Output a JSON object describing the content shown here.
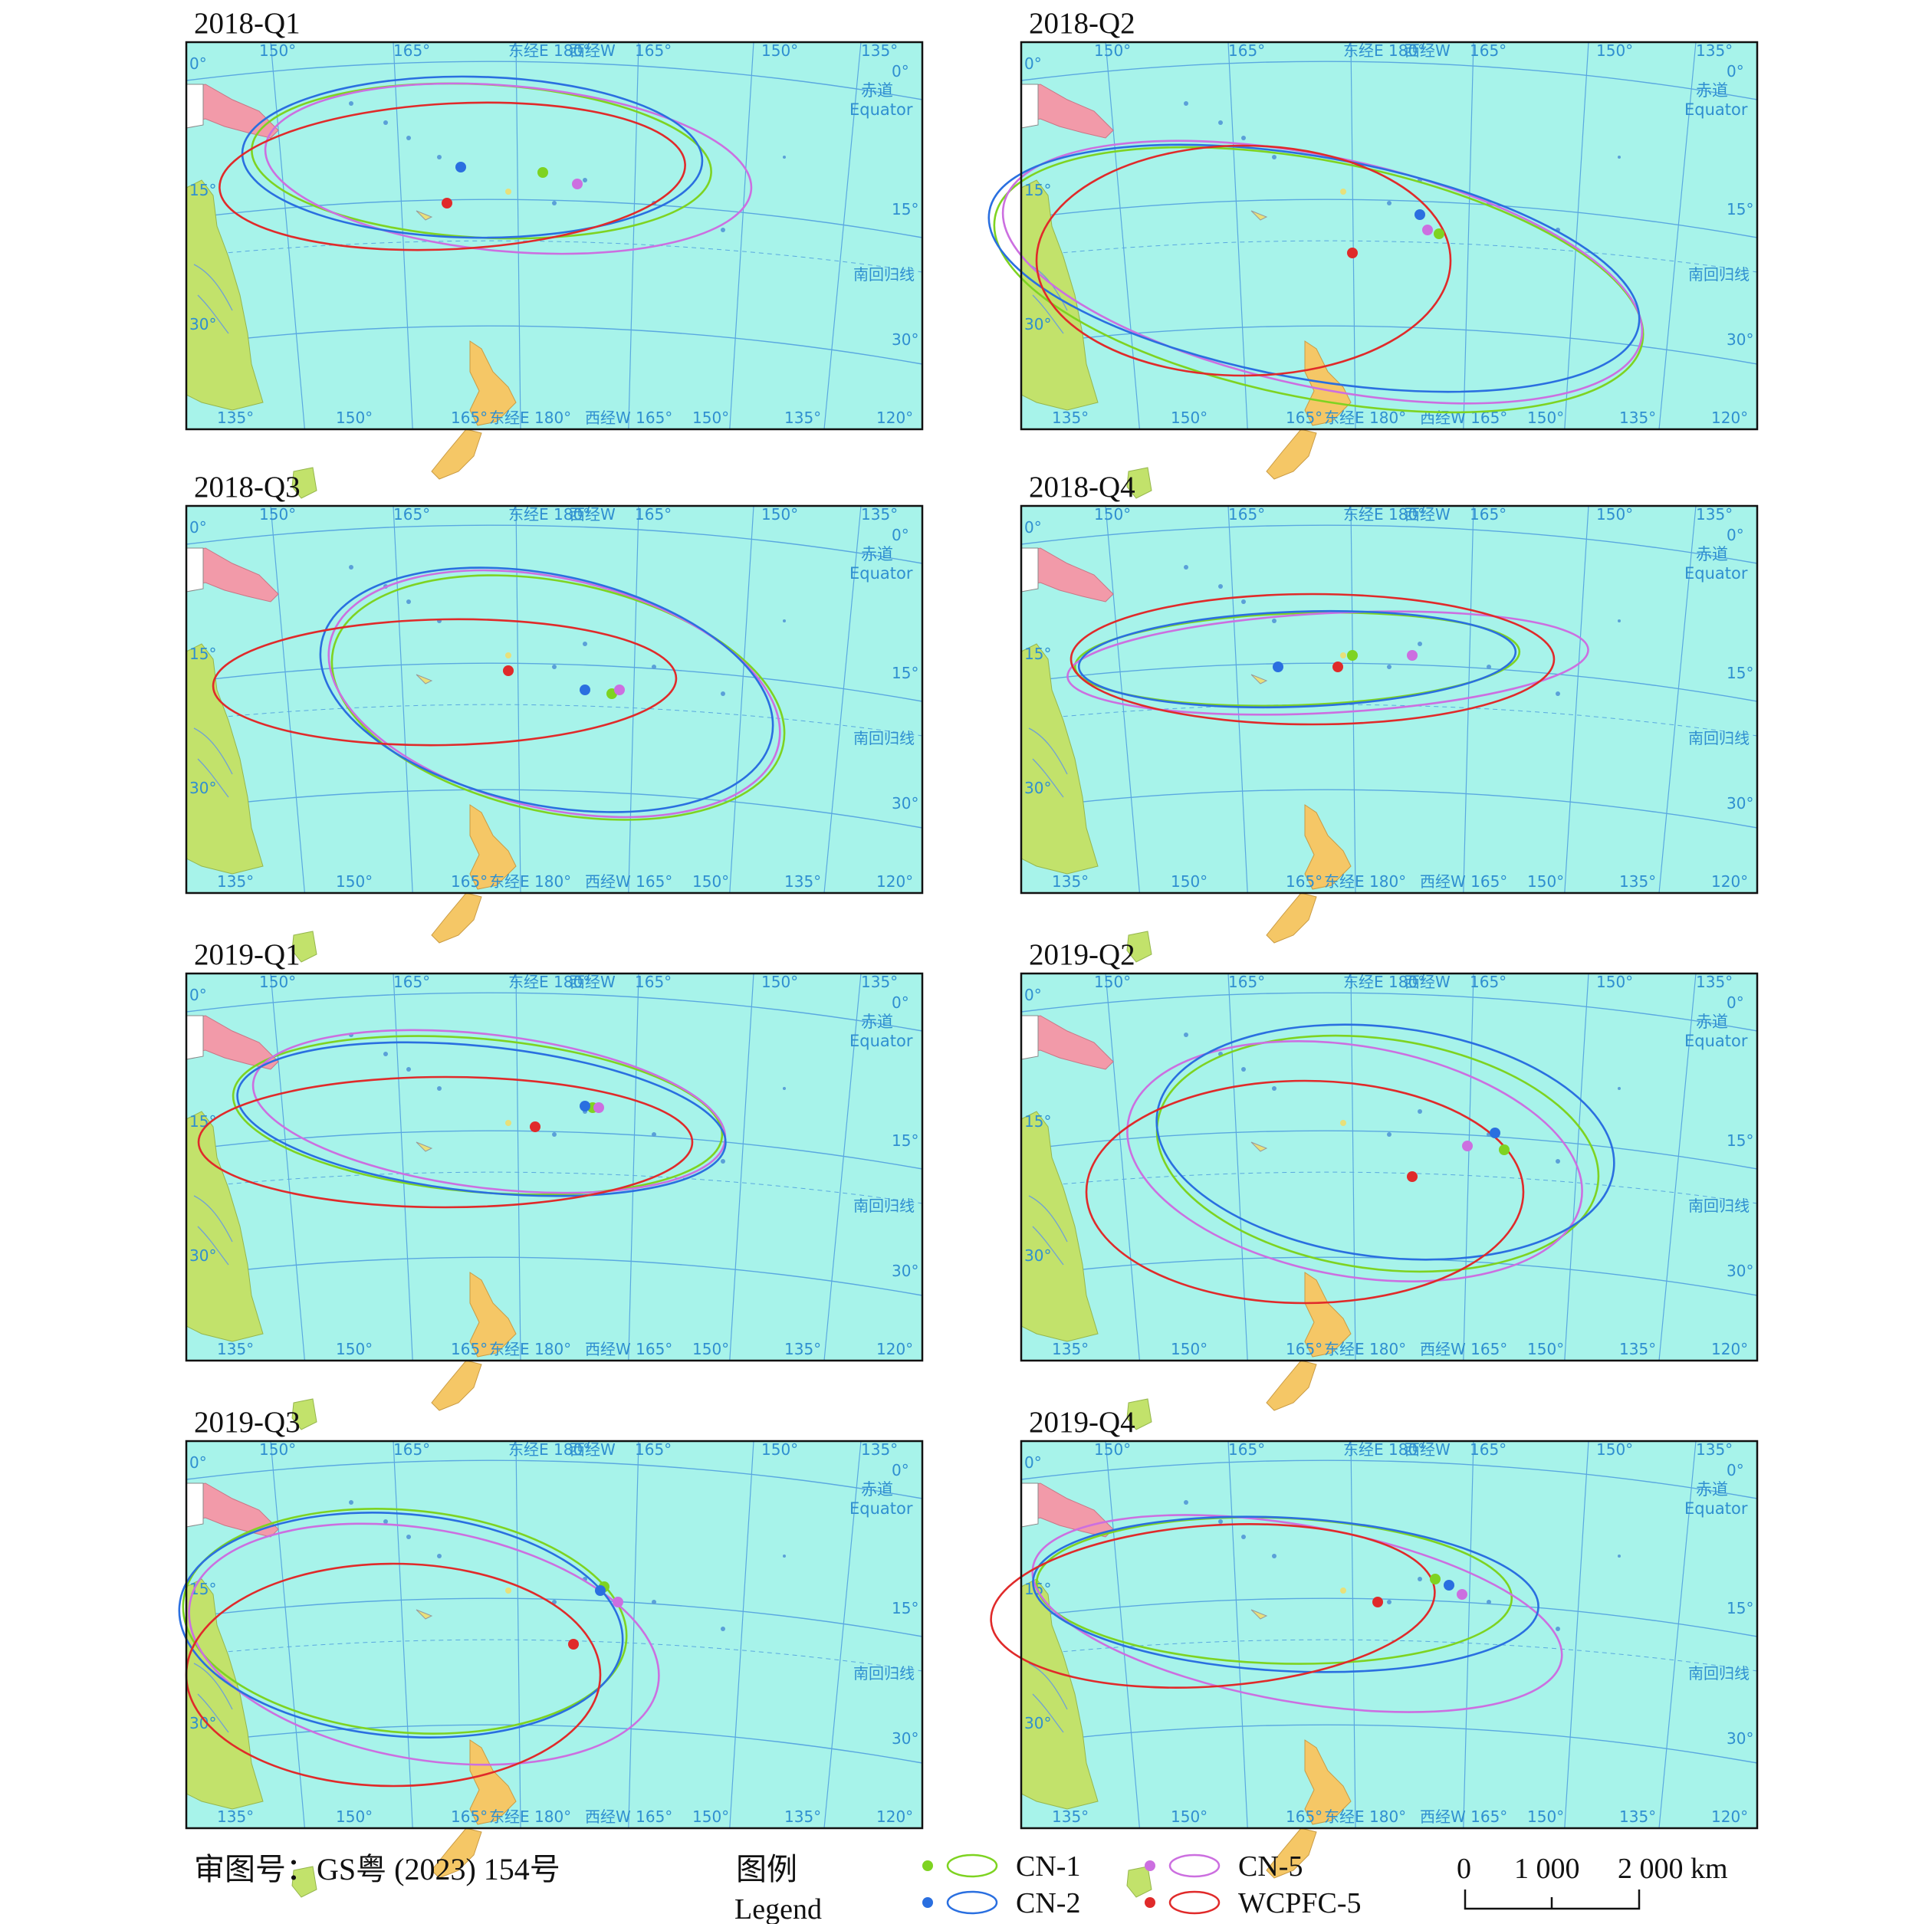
{
  "approval_number": "审图号：GS粤 (2023) 154号",
  "legend": {
    "title_cn": "图例",
    "title_en": "Legend",
    "items": [
      {
        "name": "CN-1",
        "color": "#7ed321"
      },
      {
        "name": "CN-2",
        "color": "#2a6fe0"
      },
      {
        "name": "CN-5",
        "color": "#cc6fe0"
      },
      {
        "name": "WCPFC-5",
        "color": "#e02a2a"
      }
    ]
  },
  "scale_bar": {
    "labels": [
      "0",
      "1 000",
      "2 000 km"
    ]
  },
  "map_labels": {
    "top_ticks": [
      "150°",
      "165°",
      "东经E 180°",
      "西经W",
      "165°",
      "150°",
      "135°"
    ],
    "bottom_ticks": [
      "135°",
      "150°",
      "165°",
      "东经E 180°",
      "西经W 165°",
      "150°",
      "135°",
      "120°"
    ],
    "left_lat": [
      "0°",
      "15°",
      "30°"
    ],
    "right_lat": [
      "0°",
      "15°",
      "30°"
    ],
    "equator_cn": "赤道",
    "equator_en": "Equator",
    "tropic_cn": "南回归线"
  },
  "panels": [
    {
      "title": "2018-Q1",
      "centers": {
        "CN-1": [
          177,
          -12
        ],
        "CN-2": [
          172,
          -11
        ],
        "CN-5": [
          184,
          -13
        ],
        "WCPFC-5": [
          171,
          -16
        ]
      }
    },
    {
      "title": "2018-Q2",
      "centers": {
        "CN-1": [
          -169,
          -17
        ],
        "CN-2": [
          -172,
          -14
        ],
        "CN-5": [
          -171,
          -16
        ],
        "WCPFC-5": [
          180,
          -21
        ]
      }
    },
    {
      "title": "2018-Q3",
      "centers": {
        "CN-1": [
          -168,
          -19
        ],
        "CN-2": [
          -171,
          -18
        ],
        "CN-5": [
          -168,
          -18
        ],
        "WCPFC-5": [
          179,
          -15
        ]
      }
    },
    {
      "title": "2018-Q4",
      "centers": {
        "CN-1": [
          180,
          -11
        ],
        "CN-2": [
          171,
          -13
        ],
        "CN-5": [
          -174,
          -12
        ],
        "WCPFC-5": [
          178,
          -13
        ]
      }
    },
    {
      "title": "2019-Q1",
      "centers": {
        "CN-1": [
          -173,
          -11
        ],
        "CN-2": [
          -174,
          -11
        ],
        "CN-5": [
          -173,
          -11
        ],
        "WCPFC-5": [
          180,
          -14
        ]
      }
    },
    {
      "title": "2019-Q2",
      "centers": {
        "CN-1": [
          -163,
          -16
        ],
        "CN-2": [
          -163,
          -14
        ],
        "CN-5": [
          -167,
          -15
        ],
        "WCPFC-5": [
          -172,
          -19
        ]
      }
    },
    {
      "title": "2019-Q3",
      "centers": {
        "CN-1": [
          -168,
          -14
        ],
        "CN-2": [
          -168,
          -14
        ],
        "CN-5": [
          -167,
          -16
        ],
        "WCPFC-5": [
          -171,
          -21
        ]
      }
    },
    {
      "title": "2019-Q4",
      "centers": {
        "CN-1": [
          -172,
          -10
        ],
        "CN-2": [
          -170,
          -11
        ],
        "CN-5": [
          -168,
          -12
        ],
        "WCPFC-5": [
          -178,
          -12
        ]
      }
    }
  ]
}
